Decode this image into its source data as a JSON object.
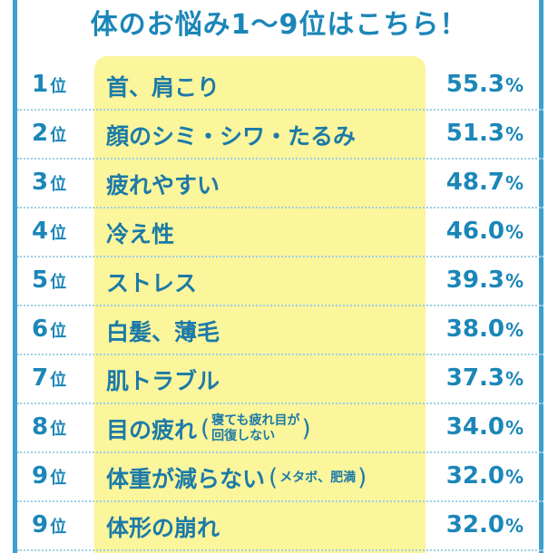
{
  "title": "体のお悩み1～9位はこちら！",
  "colors": {
    "accent": "#1b86b8",
    "highlight": "#fbf59b",
    "frame": "#3aa0cf"
  },
  "chart_data": {
    "type": "table",
    "title": "体のお悩み1～9位はこちら！",
    "unit": "%",
    "rows": [
      {
        "rank": "1",
        "rank_suffix": "位",
        "label": "首、肩こり",
        "note_lines": [],
        "value": "55.3"
      },
      {
        "rank": "2",
        "rank_suffix": "位",
        "label": "顔のシミ・シワ・たるみ",
        "note_lines": [],
        "value": "51.3"
      },
      {
        "rank": "3",
        "rank_suffix": "位",
        "label": "疲れやすい",
        "note_lines": [],
        "value": "48.7"
      },
      {
        "rank": "4",
        "rank_suffix": "位",
        "label": "冷え性",
        "note_lines": [],
        "value": "46.0"
      },
      {
        "rank": "5",
        "rank_suffix": "位",
        "label": "ストレス",
        "note_lines": [],
        "value": "39.3"
      },
      {
        "rank": "6",
        "rank_suffix": "位",
        "label": "白髪、薄毛",
        "note_lines": [],
        "value": "38.0"
      },
      {
        "rank": "7",
        "rank_suffix": "位",
        "label": "肌トラブル",
        "note_lines": [],
        "value": "37.3"
      },
      {
        "rank": "8",
        "rank_suffix": "位",
        "label": "目の疲れ",
        "note_lines": [
          "寝ても疲れ目が",
          "回復しない"
        ],
        "value": "34.0"
      },
      {
        "rank": "9",
        "rank_suffix": "位",
        "label": "体重が減らない",
        "note_lines": [
          "メタボ、肥満"
        ],
        "value": "32.0"
      },
      {
        "rank": "9",
        "rank_suffix": "位",
        "label": "体形の崩れ",
        "note_lines": [],
        "value": "32.0"
      }
    ]
  }
}
